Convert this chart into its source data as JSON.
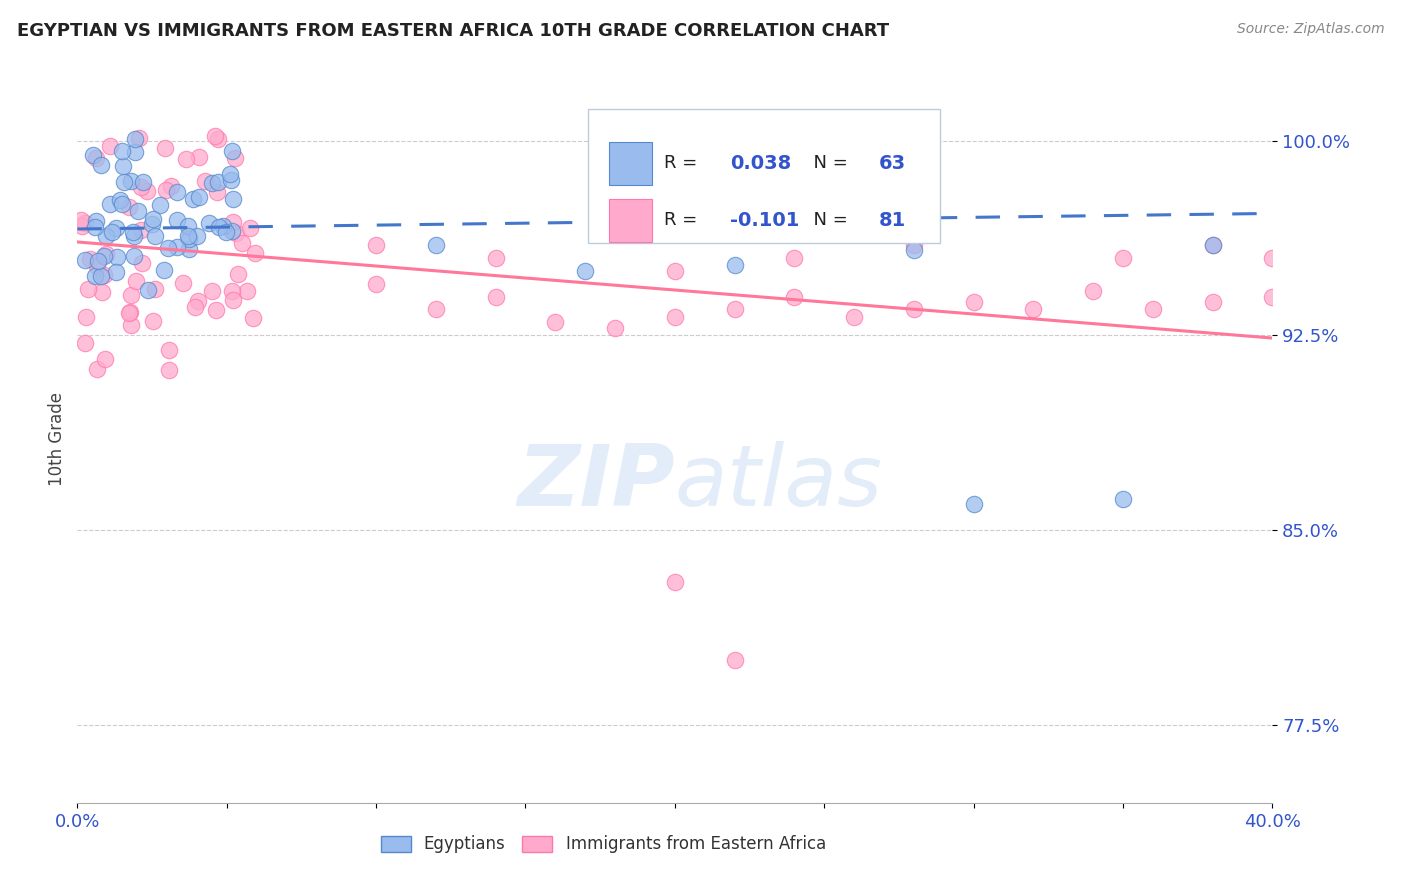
{
  "title": "EGYPTIAN VS IMMIGRANTS FROM EASTERN AFRICA 10TH GRADE CORRELATION CHART",
  "source": "Source: ZipAtlas.com",
  "ylabel": "10th Grade",
  "R1": 0.038,
  "N1": 63,
  "R2": -0.101,
  "N2": 81,
  "color_blue_fill": "#99BBEE",
  "color_blue_edge": "#5588CC",
  "color_pink_fill": "#FFAACC",
  "color_pink_edge": "#FF77AA",
  "color_blue_line": "#4477CC",
  "color_pink_line": "#FF7799",
  "color_blue_text": "#3355CC",
  "color_legend_text": "#222222",
  "watermark_color": "#DDEEFF",
  "xlim": [
    0.0,
    0.4
  ],
  "ylim": [
    0.745,
    1.025
  ],
  "ytick_values": [
    1.0,
    0.925,
    0.85,
    0.775
  ],
  "ytick_labels": [
    "100.0%",
    "92.5%",
    "85.0%",
    "77.5%"
  ],
  "xtick_values": [
    0.0,
    0.05,
    0.1,
    0.15,
    0.2,
    0.25,
    0.3,
    0.35,
    0.4
  ],
  "blue_line_y0": 0.966,
  "blue_line_y1": 0.972,
  "pink_line_y0": 0.961,
  "pink_line_y1": 0.924
}
